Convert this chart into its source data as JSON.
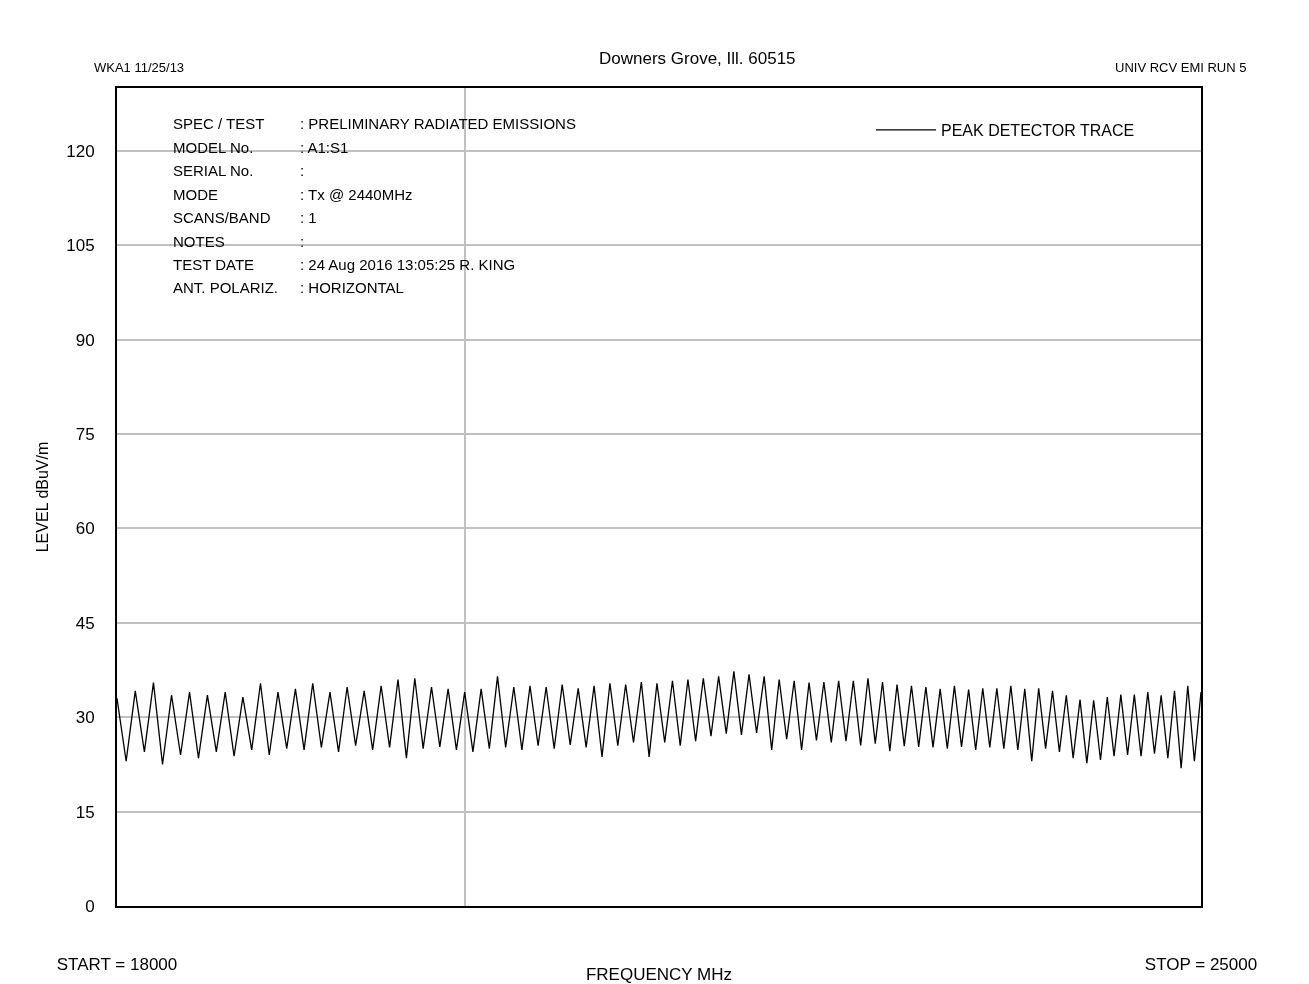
{
  "chart_data": {
    "type": "line",
    "subtitle": "Downers Grove, Ill. 60515",
    "xlabel": "FREQUENCY MHz",
    "ylabel": "LEVEL dBuV/m",
    "annotations": [
      "WKA1 11/25/13",
      "UNIV RCV EMI RUN 5",
      "SPEC / TEST : PRELIMINARY RADIATED EMISSIONS",
      "MODEL No. : A1:S1",
      "SERIAL No. :",
      "MODE : Tx @ 2440MHz",
      "SCANS/BAND : 1",
      "NOTES :",
      "TEST DATE : 24 Aug 2016 13:05:25 R. KING",
      "ANT. POLARIZ. : HORIZONTAL"
    ],
    "x": [
      18000,
      18050,
      18100,
      18150,
      18200,
      18250,
      18300,
      18350,
      18400,
      18450,
      18500,
      18550,
      18600,
      18650,
      18700,
      18750,
      18800,
      18850,
      18900,
      18950,
      19000,
      19050,
      19100,
      19150,
      19200,
      19250,
      19300,
      19350,
      19400,
      19450,
      19500,
      19550,
      19600,
      19650,
      19700,
      19750,
      19800,
      19850,
      19900,
      19950,
      20000,
      20050,
      20100,
      20150,
      20200,
      20250,
      20300,
      20350,
      20400,
      20450,
      20500,
      20550,
      20600,
      20650,
      20700,
      20750,
      20800,
      20850,
      20900,
      20950,
      21000,
      21050,
      21100,
      21150,
      21200,
      21250,
      21300,
      21350,
      21400,
      21450,
      21500,
      21550,
      21600,
      21650,
      21700,
      21750,
      21800,
      21850,
      21900,
      21950,
      22000,
      22050,
      22100,
      22150,
      22200,
      22250,
      22300,
      22350,
      22400,
      22450,
      22500,
      22550,
      22600,
      22650,
      22700,
      22750,
      22800,
      22850,
      22900,
      22950,
      23000,
      23050,
      23100,
      23150,
      23200,
      23250,
      23300,
      23350,
      23400,
      23450,
      23500,
      23550,
      23600,
      23650,
      23700,
      23750,
      23800,
      23850,
      23900,
      23950,
      24000,
      24050,
      24100,
      24150,
      24200,
      24250,
      24300,
      24350,
      24400,
      24450,
      24500,
      24550,
      24600,
      24650,
      24700,
      24750,
      24800,
      24850,
      24900,
      24950,
      25000
    ],
    "series": [
      {
        "name": "PEAK DETECTOR TRACE",
        "color": "#000000",
        "values": [
          33.0,
          23.0,
          34.2,
          24.5,
          35.5,
          22.5,
          33.5,
          24.0,
          34.0,
          23.5,
          33.5,
          24.5,
          34.0,
          23.8,
          33.2,
          24.8,
          35.4,
          24.0,
          34.0,
          25.0,
          34.5,
          24.8,
          35.4,
          25.2,
          34.0,
          24.5,
          34.8,
          25.5,
          34.2,
          24.8,
          35.0,
          25.2,
          36.0,
          23.5,
          36.2,
          25.0,
          34.8,
          25.3,
          34.5,
          24.8,
          34.0,
          24.5,
          34.5,
          25.0,
          36.5,
          25.2,
          34.8,
          24.8,
          35.0,
          25.5,
          34.8,
          25.0,
          35.2,
          25.6,
          34.6,
          25.2,
          35.0,
          23.7,
          35.4,
          25.5,
          35.2,
          26.0,
          35.6,
          23.7,
          35.4,
          26.0,
          35.8,
          25.5,
          36.0,
          26.2,
          36.2,
          27.0,
          36.5,
          27.4,
          37.3,
          27.2,
          36.8,
          27.5,
          36.5,
          24.8,
          36.0,
          26.5,
          35.8,
          24.8,
          35.5,
          26.3,
          35.6,
          26.0,
          35.8,
          26.2,
          35.8,
          25.5,
          36.2,
          25.8,
          35.6,
          24.6,
          35.2,
          25.4,
          35.0,
          25.3,
          34.8,
          25.2,
          34.5,
          25.0,
          35.0,
          25.3,
          34.4,
          24.8,
          34.6,
          25.2,
          34.6,
          25.0,
          35.0,
          24.8,
          34.5,
          23.0,
          34.6,
          25.0,
          34.2,
          24.5,
          33.5,
          23.5,
          32.8,
          22.7,
          32.7,
          23.2,
          33.2,
          23.8,
          33.6,
          24.0,
          33.6,
          23.8,
          34.0,
          24.2,
          33.5,
          23.5,
          34.2,
          21.9,
          35.0,
          23.0,
          34.0
        ]
      }
    ],
    "xlim": [
      18000,
      25000
    ],
    "xticks": [
      {
        "value": 18000,
        "label": "START = 18000"
      },
      {
        "value": 20000,
        "label": null
      },
      {
        "value": 25000,
        "label": "STOP = 25000"
      }
    ],
    "log": "x",
    "ylim": [
      0,
      130
    ],
    "yticks": [
      0,
      15,
      30,
      45,
      60,
      75,
      90,
      105,
      120
    ],
    "grid": true,
    "legend": "top right"
  }
}
